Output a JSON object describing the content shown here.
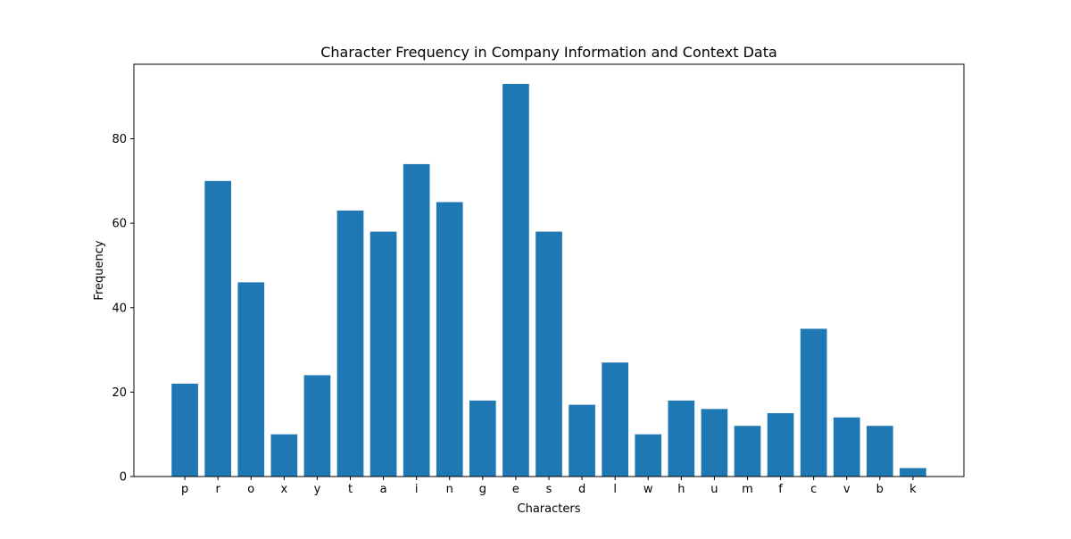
{
  "chart_data": {
    "type": "bar",
    "title": "Character Frequency in Company Information and Context Data",
    "xlabel": "Characters",
    "ylabel": "Frequency",
    "categories": [
      "p",
      "r",
      "o",
      "x",
      "y",
      "t",
      "a",
      "i",
      "n",
      "g",
      "e",
      "s",
      "d",
      "l",
      "w",
      "h",
      "u",
      "m",
      "f",
      "c",
      "v",
      "b",
      "k"
    ],
    "values": [
      22,
      70,
      46,
      10,
      24,
      63,
      58,
      74,
      65,
      18,
      93,
      58,
      17,
      27,
      10,
      18,
      16,
      12,
      15,
      35,
      14,
      12,
      2
    ],
    "ylim": [
      0,
      97.65
    ],
    "yticks": [
      0,
      20,
      40,
      60,
      80
    ],
    "bar_color": "#1f77b4",
    "grid": false,
    "legend": "none"
  }
}
